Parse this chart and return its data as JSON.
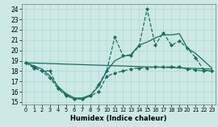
{
  "title": "",
  "xlabel": "Humidex (Indice chaleur)",
  "background_color": "#cce9e5",
  "grid_color": "#b0d8d2",
  "line_color": "#1a6e60",
  "xlim": [
    -0.5,
    23.5
  ],
  "ylim": [
    14.8,
    24.5
  ],
  "yticks": [
    15,
    16,
    17,
    18,
    19,
    20,
    21,
    22,
    23,
    24
  ],
  "xticks": [
    0,
    1,
    2,
    3,
    4,
    5,
    6,
    7,
    8,
    9,
    10,
    11,
    12,
    13,
    14,
    15,
    16,
    17,
    18,
    19,
    20,
    21,
    22,
    23
  ],
  "series": [
    {
      "x": [
        0,
        1,
        2,
        3,
        4,
        5,
        6,
        7,
        8,
        9,
        10,
        11,
        12,
        13,
        14,
        15,
        16,
        17,
        18,
        19,
        20,
        21,
        22,
        23
      ],
      "y": [
        18.8,
        18.4,
        18.0,
        18.0,
        16.3,
        15.6,
        15.3,
        15.3,
        15.6,
        16.7,
        18.0,
        21.3,
        19.5,
        19.5,
        20.4,
        24.0,
        20.5,
        21.7,
        20.5,
        20.9,
        20.2,
        19.3,
        18.1,
        18.0
      ],
      "marker": "D",
      "markersize": 2.0,
      "linewidth": 0.9,
      "linestyle": "--"
    },
    {
      "x": [
        0,
        1,
        2,
        3,
        4,
        5,
        6,
        7,
        8,
        9,
        10,
        11,
        12,
        13,
        14,
        15,
        16,
        17,
        18,
        19,
        20,
        21,
        22,
        23
      ],
      "y": [
        18.8,
        18.3,
        18.0,
        17.3,
        16.3,
        15.7,
        15.3,
        15.3,
        15.6,
        16.0,
        17.5,
        17.8,
        18.0,
        18.2,
        18.3,
        18.3,
        18.4,
        18.4,
        18.4,
        18.4,
        18.2,
        18.1,
        18.0,
        18.0
      ],
      "marker": "D",
      "markersize": 2.0,
      "linewidth": 0.9,
      "linestyle": "--"
    },
    {
      "x": [
        0,
        23
      ],
      "y": [
        18.8,
        18.2
      ],
      "marker": null,
      "markersize": 0,
      "linewidth": 0.9,
      "linestyle": "-"
    },
    {
      "x": [
        0,
        1,
        2,
        3,
        4,
        5,
        6,
        7,
        8,
        9,
        10,
        11,
        12,
        13,
        14,
        15,
        16,
        17,
        18,
        19,
        20,
        21,
        22,
        23
      ],
      "y": [
        18.8,
        18.5,
        18.2,
        17.5,
        16.5,
        15.8,
        15.4,
        15.4,
        15.7,
        16.5,
        18.0,
        19.0,
        19.4,
        19.6,
        20.5,
        20.8,
        21.2,
        21.5,
        21.5,
        21.6,
        20.2,
        19.7,
        19.0,
        18.3
      ],
      "marker": null,
      "markersize": 0,
      "linewidth": 0.9,
      "linestyle": "-"
    }
  ]
}
